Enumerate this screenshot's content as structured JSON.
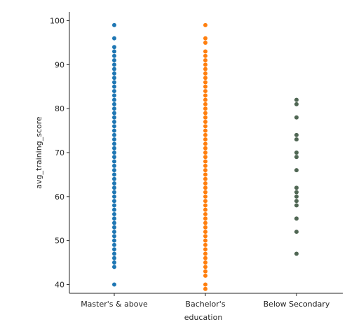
{
  "chart_data": {
    "type": "scatter",
    "subtype": "strip",
    "xlabel": "education",
    "ylabel": "avg_training_score",
    "categories": [
      "Master's & above",
      "Bachelor's",
      "Below Secondary"
    ],
    "ylim": [
      38,
      102
    ],
    "yticks": [
      40,
      50,
      60,
      70,
      80,
      90,
      100
    ],
    "grid": false,
    "legend": "none",
    "colors": [
      "#1f77b4",
      "#ff7f0e",
      "#4f6653"
    ],
    "series": [
      {
        "category": "Master's & above",
        "y_min": 40,
        "y_max": 99,
        "values": [
          40,
          44,
          45,
          46,
          47,
          48,
          49,
          50,
          51,
          52,
          53,
          54,
          55,
          56,
          57,
          58,
          59,
          60,
          61,
          62,
          63,
          64,
          65,
          66,
          67,
          68,
          69,
          70,
          71,
          72,
          73,
          74,
          75,
          76,
          77,
          78,
          79,
          80,
          81,
          82,
          83,
          84,
          85,
          86,
          87,
          88,
          89,
          90,
          91,
          92,
          93,
          94,
          96,
          99
        ]
      },
      {
        "category": "Bachelor's",
        "y_min": 39,
        "y_max": 99,
        "values": [
          39,
          40,
          42,
          43,
          44,
          45,
          46,
          47,
          48,
          49,
          50,
          51,
          52,
          53,
          54,
          55,
          56,
          57,
          58,
          59,
          60,
          61,
          62,
          63,
          64,
          65,
          66,
          67,
          68,
          69,
          70,
          71,
          72,
          73,
          74,
          75,
          76,
          77,
          78,
          79,
          80,
          81,
          82,
          83,
          84,
          85,
          86,
          87,
          88,
          89,
          90,
          91,
          92,
          93,
          95,
          96,
          99
        ]
      },
      {
        "category": "Below Secondary",
        "y_min": 47,
        "y_max": 82,
        "values": [
          47,
          52,
          55,
          58,
          59,
          60,
          61,
          62,
          66,
          69,
          70,
          73,
          74,
          78,
          81,
          82
        ]
      }
    ]
  }
}
